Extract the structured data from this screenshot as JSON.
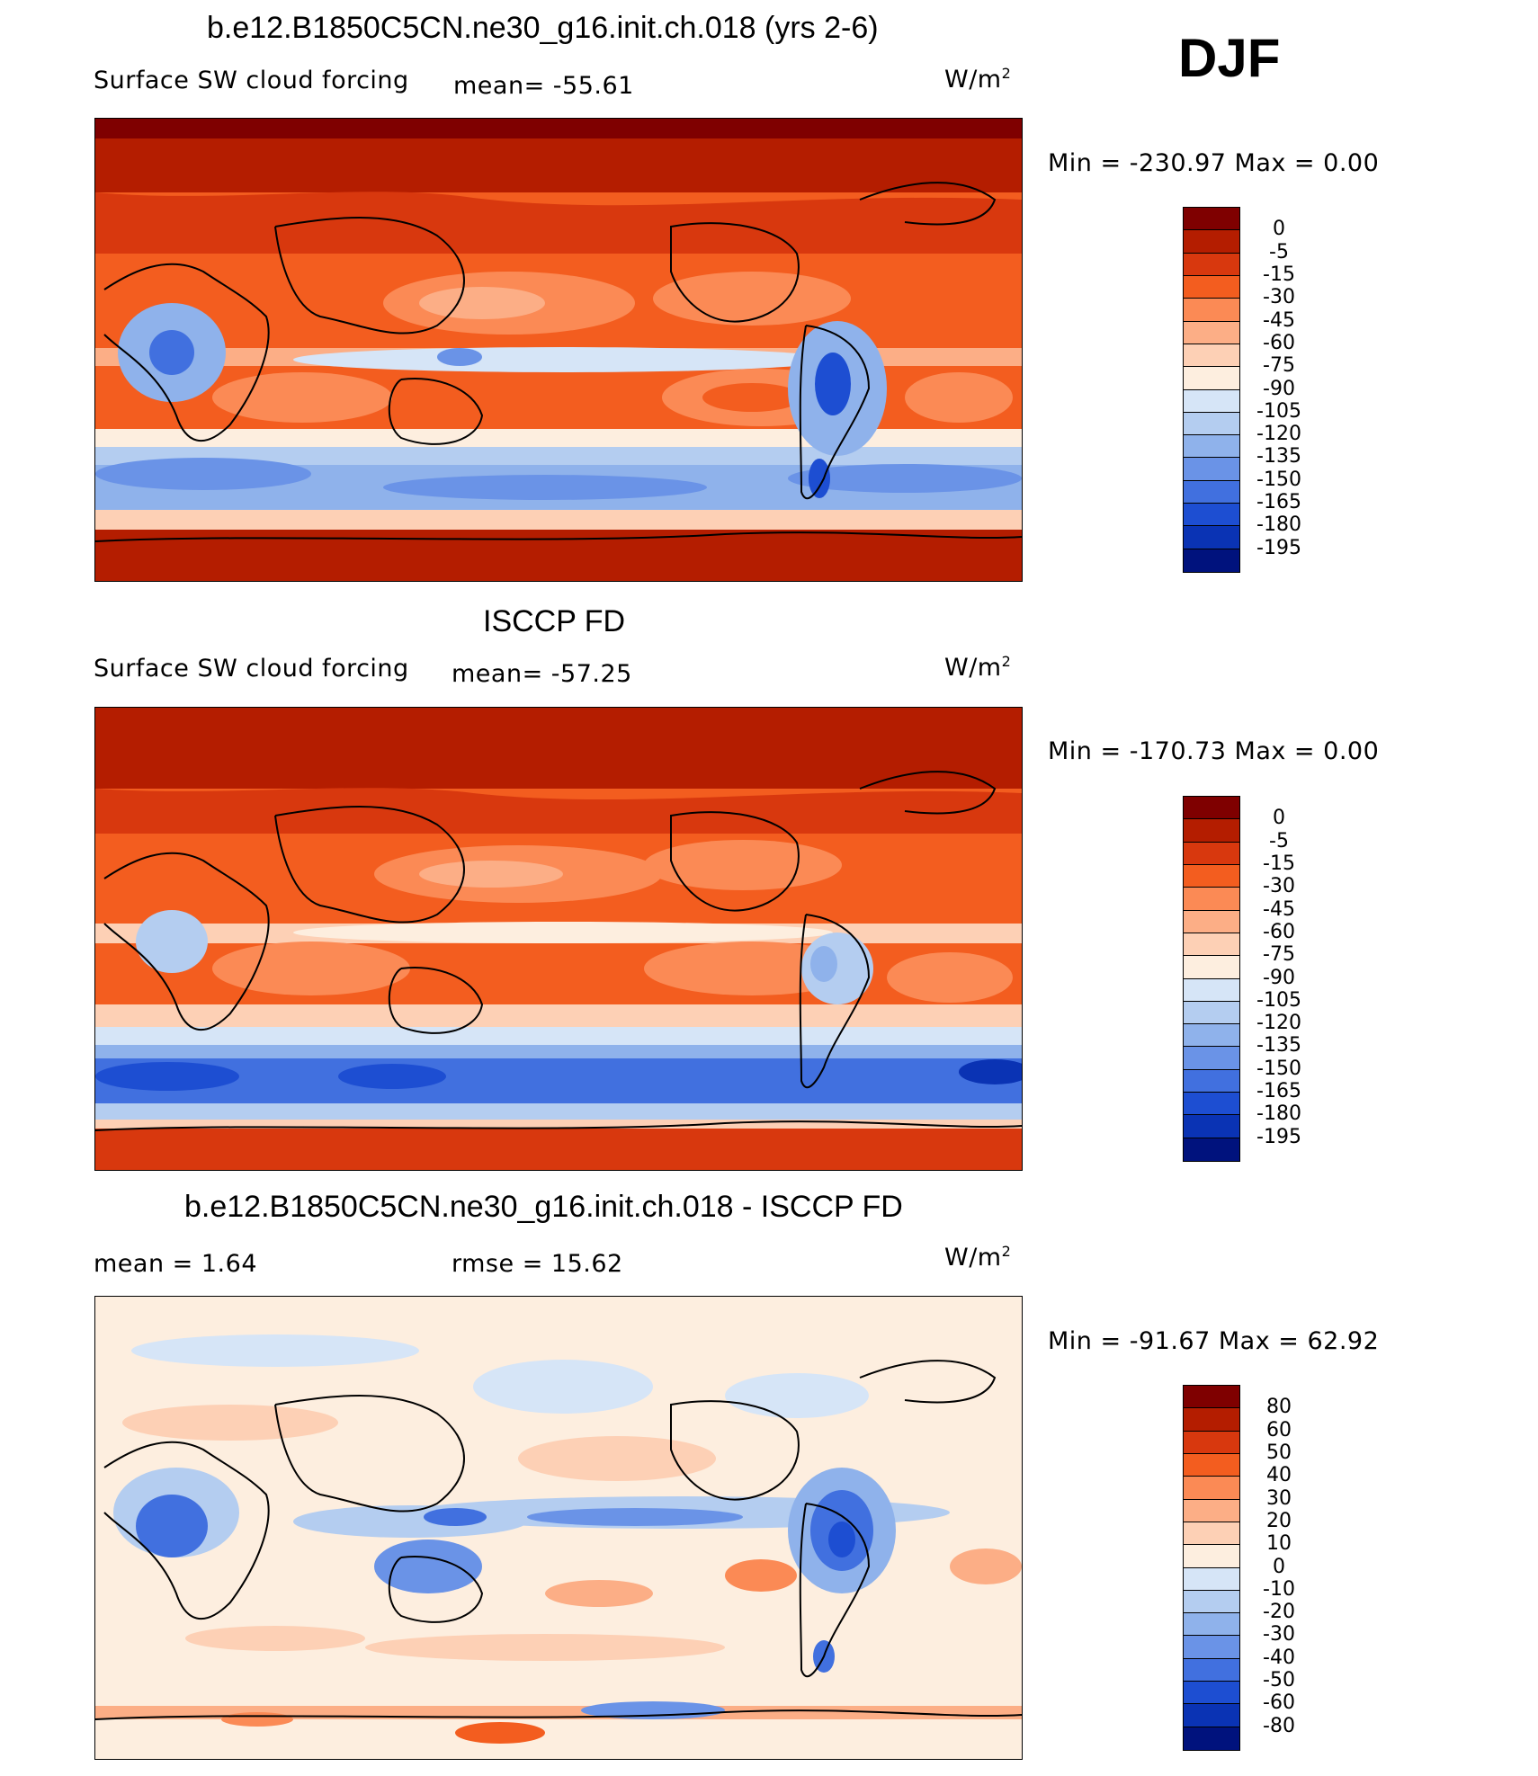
{
  "season": "DJF",
  "panels": [
    {
      "title": "b.e12.B1850C5CN.ne30_g16.init.ch.018 (yrs 2-6)",
      "variable": "Surface SW cloud forcing",
      "stat_label": "mean=",
      "stat_value": "-55.61",
      "unit": "W/m",
      "unit_exp": "2",
      "min_label": "Min  =",
      "min_value": "-230.97",
      "max_label": "Max  =",
      "max_value": "0.00",
      "levels": [
        "0",
        "-5",
        "-15",
        "-30",
        "-45",
        "-60",
        "-75",
        "-90",
        "-105",
        "-120",
        "-135",
        "-150",
        "-165",
        "-180",
        "-195"
      ],
      "colors": [
        "#7f0000",
        "#b41d00",
        "#d8380e",
        "#f35d1f",
        "#fb8a55",
        "#fcae86",
        "#fdd0b5",
        "#fdeedf",
        "#d6e5f7",
        "#b4cdf0",
        "#8fb2eb",
        "#6a93e7",
        "#4170df",
        "#1d4ed2",
        "#0a33b4",
        "#00127d"
      ]
    },
    {
      "title": "ISCCP FD",
      "variable": "Surface SW cloud forcing",
      "stat_label": "mean=",
      "stat_value": "-57.25",
      "unit": "W/m",
      "unit_exp": "2",
      "min_label": "Min  =",
      "min_value": "-170.73",
      "max_label": "Max  =",
      "max_value": "0.00",
      "levels": [
        "0",
        "-5",
        "-15",
        "-30",
        "-45",
        "-60",
        "-75",
        "-90",
        "-105",
        "-120",
        "-135",
        "-150",
        "-165",
        "-180",
        "-195"
      ],
      "colors": [
        "#7f0000",
        "#b41d00",
        "#d8380e",
        "#f35d1f",
        "#fb8a55",
        "#fcae86",
        "#fdd0b5",
        "#fdeedf",
        "#d6e5f7",
        "#b4cdf0",
        "#8fb2eb",
        "#6a93e7",
        "#4170df",
        "#1d4ed2",
        "#0a33b4",
        "#00127d"
      ]
    },
    {
      "title": "b.e12.B1850C5CN.ne30_g16.init.ch.018 - ISCCP FD",
      "variable": "",
      "stat_label": "mean =",
      "stat_value": "1.64",
      "rmse_label": "rmse =",
      "rmse_value": "15.62",
      "unit": "W/m",
      "unit_exp": "2",
      "min_label": "Min  =",
      "min_value": "-91.67",
      "max_label": "Max  =",
      "max_value": "62.92",
      "levels": [
        "80",
        "60",
        "50",
        "40",
        "30",
        "20",
        "10",
        "0",
        "-10",
        "-20",
        "-30",
        "-40",
        "-50",
        "-60",
        "-80"
      ],
      "colors": [
        "#7f0000",
        "#b41d00",
        "#d8380e",
        "#f35d1f",
        "#fb8a55",
        "#fcae86",
        "#fdd0b5",
        "#fdeedf",
        "#d6e5f7",
        "#b4cdf0",
        "#8fb2eb",
        "#6a93e7",
        "#4170df",
        "#1d4ed2",
        "#0a33b4",
        "#00127d"
      ]
    }
  ]
}
